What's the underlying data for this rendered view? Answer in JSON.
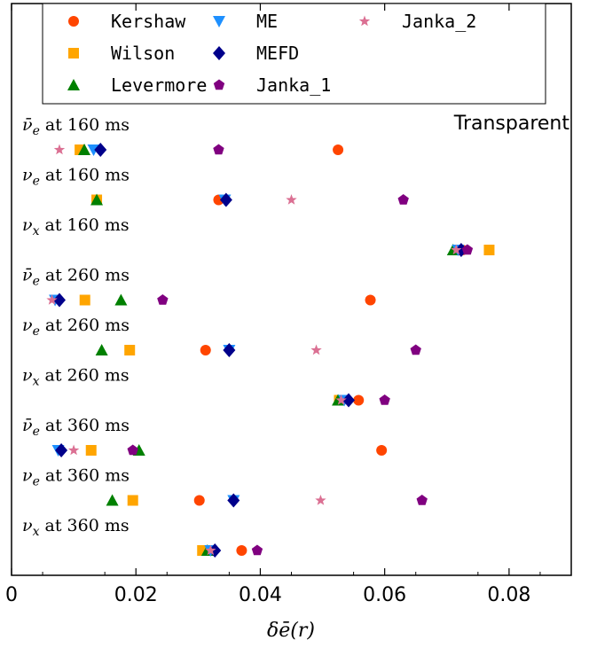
{
  "chart_data": {
    "type": "scatter",
    "xlabel": "δē(r)",
    "xlim": [
      0,
      0.09
    ],
    "xticks": [
      0,
      0.02,
      0.04,
      0.06,
      0.08
    ],
    "xtick_labels": [
      "0",
      "0.02",
      "0.04",
      "0.06",
      "0.08"
    ],
    "annotation": "Transparent",
    "rows": [
      {
        "name": "ν̄e",
        "sym": "ν̄",
        "sub": "e",
        "label": "at 160 ms"
      },
      {
        "name": "νe",
        "sym": "ν",
        "sub": "e",
        "label": "at 160 ms"
      },
      {
        "name": "νx",
        "sym": "ν",
        "sub": "x",
        "label": "at 160 ms"
      },
      {
        "name": "ν̄e",
        "sym": "ν̄",
        "sub": "e",
        "label": "at 260 ms"
      },
      {
        "name": "νe",
        "sym": "ν",
        "sub": "e",
        "label": "at 260 ms"
      },
      {
        "name": "νx",
        "sym": "ν",
        "sub": "x",
        "label": "at 260 ms"
      },
      {
        "name": "ν̄e",
        "sym": "ν̄",
        "sub": "e",
        "label": "at 360 ms"
      },
      {
        "name": "νe",
        "sym": "ν",
        "sub": "e",
        "label": "at 360 ms"
      },
      {
        "name": "νx",
        "sym": "ν",
        "sub": "x",
        "label": "at 360 ms"
      }
    ],
    "series": [
      {
        "name": "Kershaw",
        "marker": "circle",
        "color": "#ff4500",
        "values": [
          0.0525,
          0.0333,
          0.0725,
          0.0577,
          0.0312,
          0.0558,
          0.0595,
          0.0302,
          0.037
        ]
      },
      {
        "name": "Wilson",
        "marker": "square",
        "color": "#ffa500",
        "values": [
          0.011,
          0.0137,
          0.0768,
          0.0118,
          0.019,
          0.0527,
          0.0128,
          0.0195,
          0.0307
        ]
      },
      {
        "name": "Levermore",
        "marker": "triangle-up",
        "color": "#008000",
        "values": [
          0.0117,
          0.0137,
          0.071,
          0.0176,
          0.0145,
          0.0525,
          0.0205,
          0.0162,
          0.0315
        ]
      },
      {
        "name": "ME",
        "marker": "triangle-down",
        "color": "#1e90ff",
        "values": [
          0.0132,
          0.0343,
          0.0718,
          0.007,
          0.035,
          0.0535,
          0.0075,
          0.0357,
          0.032
        ]
      },
      {
        "name": "MEFD",
        "marker": "diamond",
        "color": "#00008b",
        "values": [
          0.0143,
          0.0345,
          0.0723,
          0.0077,
          0.035,
          0.0542,
          0.008,
          0.0357,
          0.0327
        ]
      },
      {
        "name": "Janka_1",
        "marker": "pentagon",
        "color": "#800080",
        "values": [
          0.0333,
          0.063,
          0.0733,
          0.0243,
          0.065,
          0.06,
          0.0195,
          0.066,
          0.0395
        ]
      },
      {
        "name": "Janka_2",
        "marker": "star",
        "color": "#db7093",
        "values": [
          0.0077,
          0.045,
          0.0715,
          0.0065,
          0.049,
          0.053,
          0.01,
          0.0497,
          0.032
        ]
      }
    ]
  }
}
